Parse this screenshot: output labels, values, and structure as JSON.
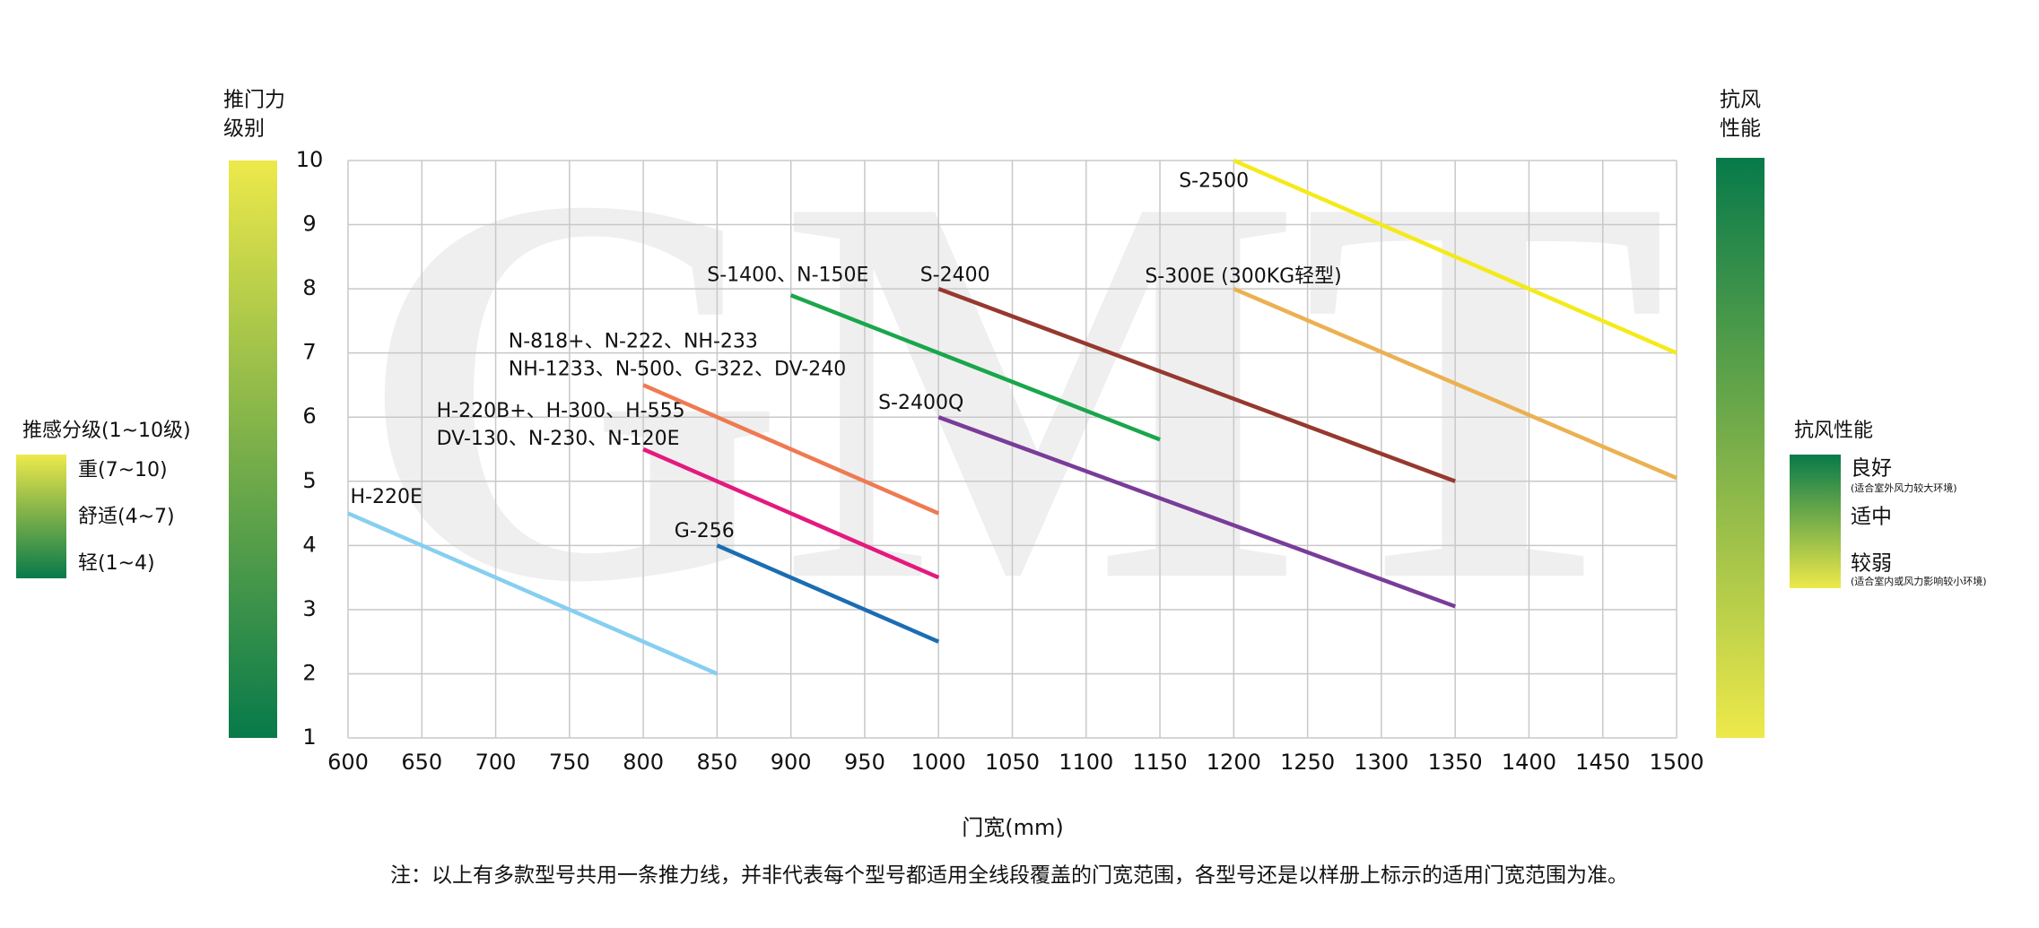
{
  "chart_data": {
    "type": "line",
    "watermark": "GMT",
    "y_label": [
      "推门力",
      "级别"
    ],
    "y2_label": [
      "抗风",
      "性能"
    ],
    "x_label": "门宽(mm)",
    "note": "注：以上有多款型号共用一条推力线，并非代表每个型号都适用全线段覆盖的门宽范围，各型号还是以样册上标示的适用门宽范围为准。",
    "xlim": [
      600,
      1500
    ],
    "xticks": [
      600,
      650,
      700,
      750,
      800,
      850,
      900,
      950,
      1000,
      1050,
      1100,
      1150,
      1200,
      1250,
      1300,
      1350,
      1400,
      1450,
      1500
    ],
    "ylim": [
      1,
      10
    ],
    "yticks": [
      1,
      2,
      3,
      4,
      5,
      6,
      7,
      8,
      9,
      10
    ],
    "grid": true,
    "series": [
      {
        "name": [
          "H-220E"
        ],
        "color": "#86cff0",
        "x": [
          600,
          850
        ],
        "values": [
          4.5,
          2.0
        ]
      },
      {
        "name": [
          "G-256"
        ],
        "color": "#1b6db3",
        "x": [
          850,
          1000
        ],
        "values": [
          4.0,
          2.5
        ]
      },
      {
        "name": [
          "H-220B+、H-300、H-555",
          "DV-130、N-230、N-120E"
        ],
        "color": "#e4197f",
        "x": [
          800,
          1000
        ],
        "values": [
          5.5,
          3.5
        ]
      },
      {
        "name": [
          "N-818+、N-222、NH-233",
          "NH-1233、N-500、G-322、DV-240"
        ],
        "color": "#ef7a52",
        "x": [
          800,
          1000
        ],
        "values": [
          6.5,
          4.5
        ]
      },
      {
        "name": [
          "S-1400、N-150E"
        ],
        "color": "#1aa64b",
        "x": [
          900,
          1150
        ],
        "values": [
          7.9,
          5.65
        ]
      },
      {
        "name": [
          "S-2400Q"
        ],
        "color": "#7a3c99",
        "x": [
          1000,
          1350
        ],
        "values": [
          6.0,
          3.05
        ]
      },
      {
        "name": [
          "S-2400"
        ],
        "color": "#96392e",
        "x": [
          1000,
          1350
        ],
        "values": [
          8.0,
          5.0
        ]
      },
      {
        "name": [
          "S-300E (300KG轻型)"
        ],
        "color": "#ebb151",
        "x": [
          1200,
          1500
        ],
        "values": [
          8.0,
          5.05
        ]
      },
      {
        "name": [
          "S-2500"
        ],
        "color": "#f4ea1a",
        "x": [
          1200,
          1500
        ],
        "values": [
          10.0,
          7.0
        ]
      }
    ],
    "left_legend": {
      "title": "推感分级(1~10级)",
      "items": [
        "重(7~10)",
        "舒适(4~7)",
        "轻(1~4)"
      ]
    },
    "right_legend": {
      "title": "抗风性能",
      "good": "良好",
      "good_note": "(适合室外风力较大环境)",
      "medium": "适中",
      "weak": "较弱",
      "weak_note": "(适合室内或风力影响较小环境)"
    }
  }
}
